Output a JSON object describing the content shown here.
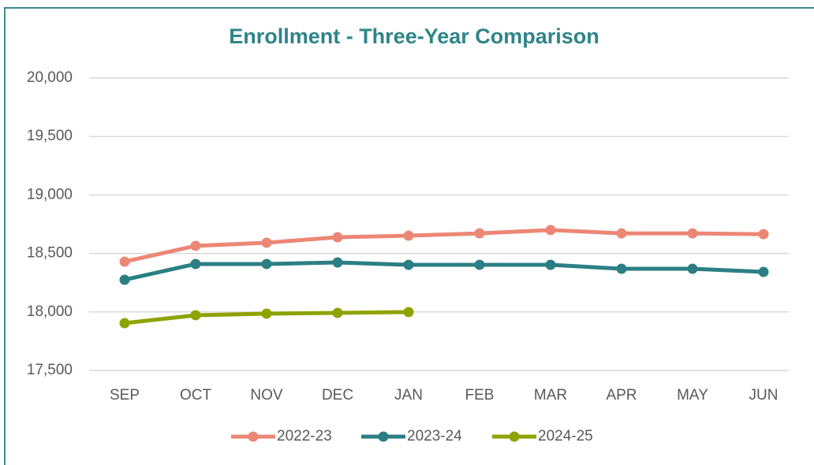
{
  "chart_data": {
    "type": "line",
    "title": "Enrollment  - Three-Year Comparison",
    "categories": [
      "SEP",
      "OCT",
      "NOV",
      "DEC",
      "JAN",
      "FEB",
      "MAR",
      "APR",
      "MAY",
      "JUN"
    ],
    "series": [
      {
        "name": "2022-23",
        "color": "#ec8775",
        "values": [
          18430,
          18565,
          18592,
          18639,
          18652,
          18672,
          18700,
          18672,
          18672,
          18665
        ]
      },
      {
        "name": "2023-24",
        "color": "#2b7f84",
        "values": [
          18275,
          18410,
          18410,
          18423,
          18403,
          18403,
          18403,
          18369,
          18369,
          18342
        ]
      },
      {
        "name": "2024-25",
        "color": "#8fa300",
        "values": [
          17904,
          17972,
          17985,
          17992,
          17999,
          null,
          null,
          null,
          null,
          null
        ]
      }
    ],
    "ylim": [
      17500,
      20000
    ],
    "yticks": [
      {
        "value": 17500,
        "label": "17,500"
      },
      {
        "value": 18000,
        "label": "18,000"
      },
      {
        "value": 18500,
        "label": "18,500"
      },
      {
        "value": 19000,
        "label": "19,000"
      },
      {
        "value": 19500,
        "label": "19,500"
      },
      {
        "value": 20000,
        "label": "20,000"
      }
    ],
    "grid": true,
    "legend": "bottom"
  }
}
